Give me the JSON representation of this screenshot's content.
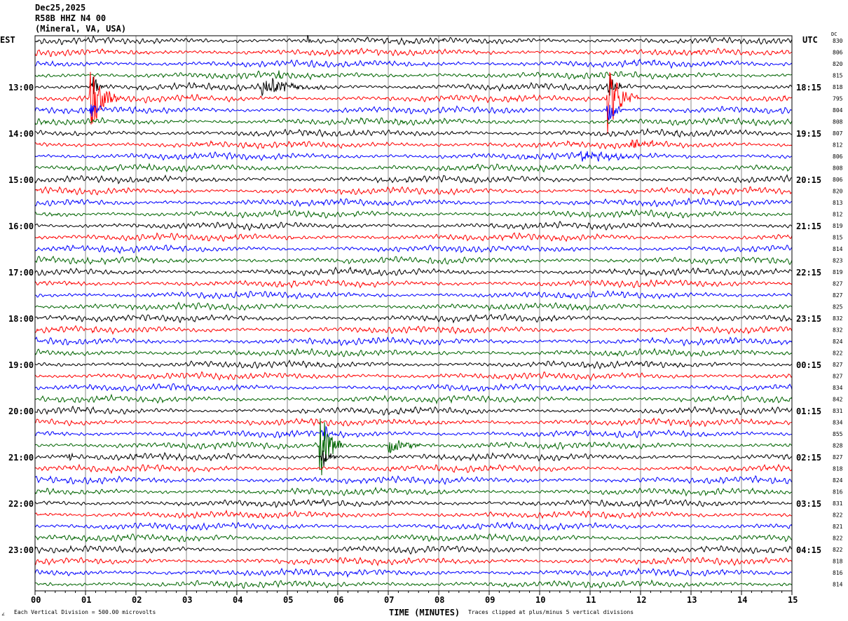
{
  "header": {
    "date": "Dec25,2025",
    "station": "R58B HHZ N4 00",
    "location": "(Mineral, VA, USA)"
  },
  "footer": {
    "scale_note": "Each Vertical Division =  500.00 microvolts",
    "clip_note": "Traces clipped at plus/minus 5 vertical divisions",
    "logo": "∠"
  },
  "chart_data": {
    "type": "line",
    "subtype": "helicorder",
    "xlabel": "TIME (MINUTES)",
    "xlim": [
      0,
      15
    ],
    "x_ticks": [
      "00",
      "01",
      "02",
      "03",
      "04",
      "05",
      "06",
      "07",
      "08",
      "09",
      "10",
      "11",
      "12",
      "13",
      "14",
      "15"
    ],
    "left_axis_title": "EST",
    "right_axis_title": "UTC",
    "dc_title": "DC",
    "row_minutes": 15,
    "trace_colors": [
      "#000000",
      "#ff0000",
      "#0000ff",
      "#006400"
    ],
    "grid": true,
    "est_labels": {
      "4": "13:00",
      "8": "14:00",
      "12": "15:00",
      "16": "16:00",
      "20": "17:00",
      "24": "18:00",
      "28": "19:00",
      "32": "20:00",
      "36": "21:00",
      "40": "22:00",
      "44": "23:00"
    },
    "utc_labels": {
      "4": "18:15",
      "8": "19:15",
      "12": "20:15",
      "16": "21:15",
      "20": "22:15",
      "24": "23:15",
      "28": "00:15",
      "32": "01:15",
      "36": "02:15",
      "40": "03:15",
      "44": "04:15"
    },
    "dc_values": [
      "830",
      "806",
      "820",
      "815",
      "818",
      "795",
      "804",
      "808",
      "807",
      "812",
      "806",
      "808",
      "806",
      "820",
      "813",
      "812",
      "819",
      "815",
      "814",
      "823",
      "819",
      "827",
      "827",
      "825",
      "832",
      "832",
      "824",
      "822",
      "827",
      "827",
      "834",
      "842",
      "831",
      "834",
      "855",
      "828",
      "827",
      "818",
      "824",
      "816",
      "831",
      "822",
      "821",
      "822",
      "822",
      "818",
      "816",
      "814"
    ],
    "noise_amplitude_divisions": 0.3,
    "clip_divisions": 5,
    "events": [
      {
        "row": 5,
        "minute": 1.1,
        "amplitude_divisions": 3.5,
        "duration_min": 0.6
      },
      {
        "row": 4,
        "minute": 1.15,
        "amplitude_divisions": 1.2,
        "duration_min": 0.3
      },
      {
        "row": 6,
        "minute": 1.1,
        "amplitude_divisions": 1.0,
        "duration_min": 0.3
      },
      {
        "row": 5,
        "minute": 11.35,
        "amplitude_divisions": 3.5,
        "duration_min": 0.6
      },
      {
        "row": 4,
        "minute": 11.35,
        "amplitude_divisions": 1.5,
        "duration_min": 0.4
      },
      {
        "row": 6,
        "minute": 11.35,
        "amplitude_divisions": 1.2,
        "duration_min": 0.4
      },
      {
        "row": 4,
        "minute": 4.5,
        "amplitude_divisions": 0.8,
        "duration_min": 1.4
      },
      {
        "row": 3,
        "minute": 4.8,
        "amplitude_divisions": 0.6,
        "duration_min": 0.4
      },
      {
        "row": 10,
        "minute": 10.8,
        "amplitude_divisions": 0.5,
        "duration_min": 1.5
      },
      {
        "row": 9,
        "minute": 11.8,
        "amplitude_divisions": 0.4,
        "duration_min": 1.0
      },
      {
        "row": 35,
        "minute": 5.65,
        "amplitude_divisions": 3.5,
        "duration_min": 0.5
      },
      {
        "row": 35,
        "minute": 7.0,
        "amplitude_divisions": 0.7,
        "duration_min": 1.0
      },
      {
        "row": 36,
        "minute": 5.7,
        "amplitude_divisions": 1.2,
        "duration_min": 0.3
      },
      {
        "row": 34,
        "minute": 5.7,
        "amplitude_divisions": 1.0,
        "duration_min": 0.3
      },
      {
        "row": 36,
        "minute": 0.6,
        "amplitude_divisions": 0.6,
        "duration_min": 0.3
      },
      {
        "row": 0,
        "minute": 5.4,
        "amplitude_divisions": 0.6,
        "duration_min": 0.1
      }
    ]
  }
}
